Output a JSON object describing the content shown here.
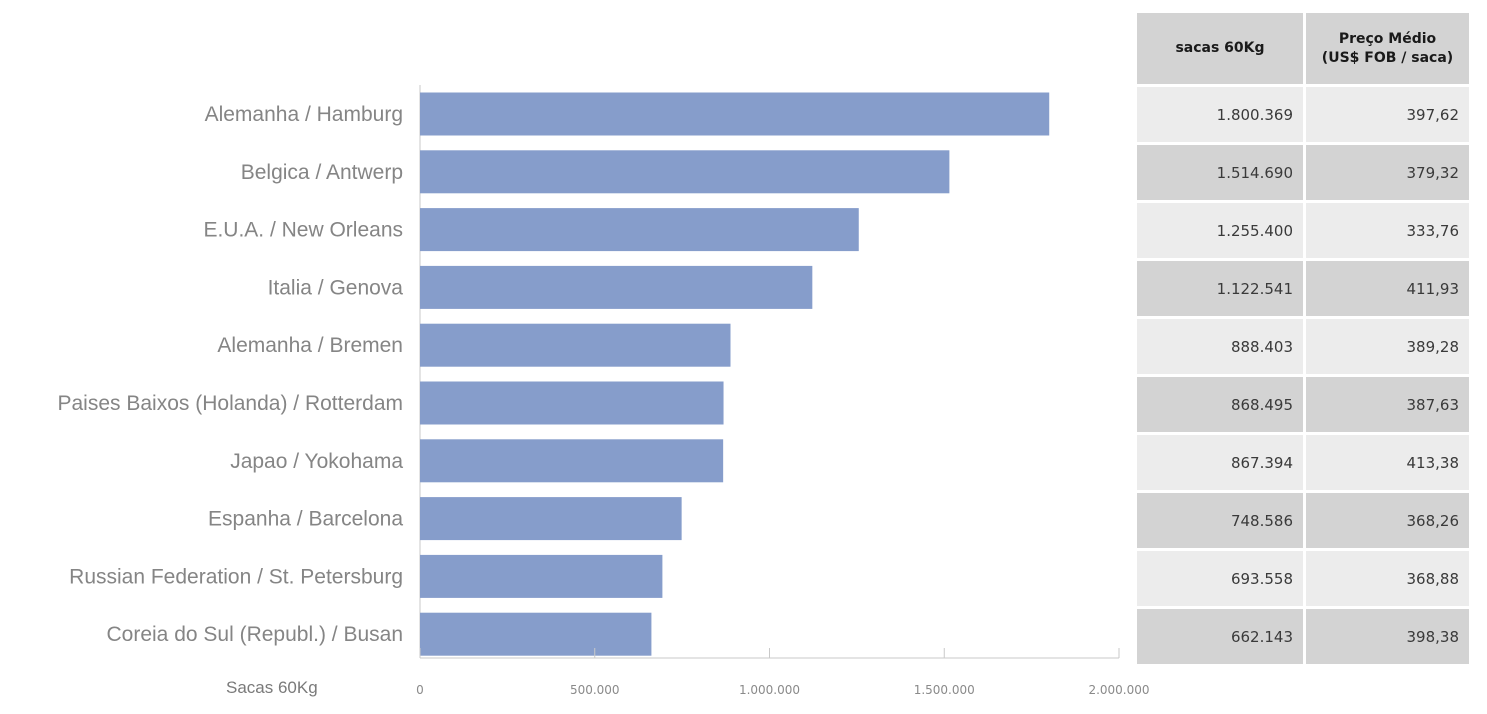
{
  "chart_data": {
    "type": "bar",
    "orientation": "horizontal",
    "categories": [
      "Alemanha / Hamburg",
      "Belgica / Antwerp",
      "E.U.A. / New Orleans",
      "Italia / Genova",
      "Alemanha / Bremen",
      "Paises Baixos (Holanda) / Rotterdam",
      "Japao / Yokohama",
      "Espanha / Barcelona",
      "Russian Federation / St. Petersburg",
      "Coreia do Sul (Republ.) / Busan"
    ],
    "values": [
      1800369,
      1514690,
      1255400,
      1122541,
      888403,
      868495,
      867394,
      748586,
      693558,
      662143
    ],
    "xlabel": "Sacas 60Kg",
    "xlim": [
      0,
      2000000
    ],
    "xticks": [
      0,
      500000,
      1000000,
      1500000,
      2000000
    ],
    "xtick_labels": [
      "0",
      "500.000",
      "1.000.000",
      "1.500.000",
      "2.000.000"
    ],
    "grid": false,
    "bar_color": "#869dcb"
  },
  "table": {
    "headers": [
      "sacas 60Kg",
      "Preço Médio\n(US$ FOB / saca)"
    ],
    "rows": [
      [
        "1.800.369",
        "397,62"
      ],
      [
        "1.514.690",
        "379,32"
      ],
      [
        "1.255.400",
        "333,76"
      ],
      [
        "1.122.541",
        "411,93"
      ],
      [
        "888.403",
        "389,28"
      ],
      [
        "868.495",
        "387,63"
      ],
      [
        "867.394",
        "413,38"
      ],
      [
        "748.586",
        "368,26"
      ],
      [
        "693.558",
        "368,88"
      ],
      [
        "662.143",
        "398,38"
      ]
    ]
  }
}
